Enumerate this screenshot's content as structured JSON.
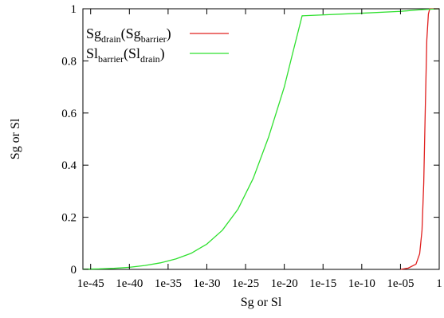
{
  "chart_data": {
    "type": "line",
    "xscale": "log",
    "xlim": [
      1e-46,
      1
    ],
    "ylim": [
      0,
      1
    ],
    "xlabel": "Sg or Sl",
    "ylabel": "Sg or Sl",
    "grid": false,
    "legend_position": "top-left",
    "x_ticks": [
      "1e-45",
      "1e-40",
      "1e-35",
      "1e-30",
      "1e-25",
      "1e-20",
      "1e-15",
      "1e-10",
      "1e-05",
      "1"
    ],
    "x_tick_values": [
      1e-45,
      1e-40,
      1e-35,
      1e-30,
      1e-25,
      1e-20,
      1e-15,
      1e-10,
      1e-05,
      1
    ],
    "y_ticks": [
      "0",
      "0.2",
      "0.4",
      "0.6",
      "0.8",
      "1"
    ],
    "y_tick_values": [
      0,
      0.2,
      0.4,
      0.6,
      0.8,
      1
    ],
    "series": [
      {
        "name": "Sg_drain(Sg_barrier)",
        "legend_parts": [
          "Sg",
          "drain",
          "(Sg",
          "barrier",
          ")"
        ],
        "color": "#e0201f",
        "x": [
          1e-05,
          0.0001,
          0.001,
          0.003,
          0.006,
          0.01,
          0.016,
          0.025,
          0.04,
          0.06,
          0.1,
          1
        ],
        "y": [
          0,
          0.005,
          0.02,
          0.06,
          0.15,
          0.33,
          0.62,
          0.88,
          0.98,
          1.0,
          1.0,
          1.0
        ]
      },
      {
        "name": "Sl_barrier(Sl_drain)",
        "legend_parts": [
          "Sl",
          "barrier",
          "(Sl",
          "drain",
          ")"
        ],
        "color": "#2fe02f",
        "x": [
          1e-46,
          1e-44,
          1e-42,
          1e-40,
          1e-38,
          1e-36,
          1e-34,
          1e-32,
          1e-30,
          1e-28,
          1e-26,
          1e-24,
          1e-22,
          1e-20,
          1e-19,
          2e-18,
          1e-10,
          1e-05,
          0.001,
          0.01,
          1
        ],
        "y": [
          0.001,
          0.002,
          0.004,
          0.008,
          0.015,
          0.025,
          0.04,
          0.062,
          0.097,
          0.15,
          0.23,
          0.35,
          0.51,
          0.7,
          0.82,
          0.973,
          0.983,
          0.99,
          0.995,
          0.997,
          1.0
        ]
      }
    ]
  }
}
